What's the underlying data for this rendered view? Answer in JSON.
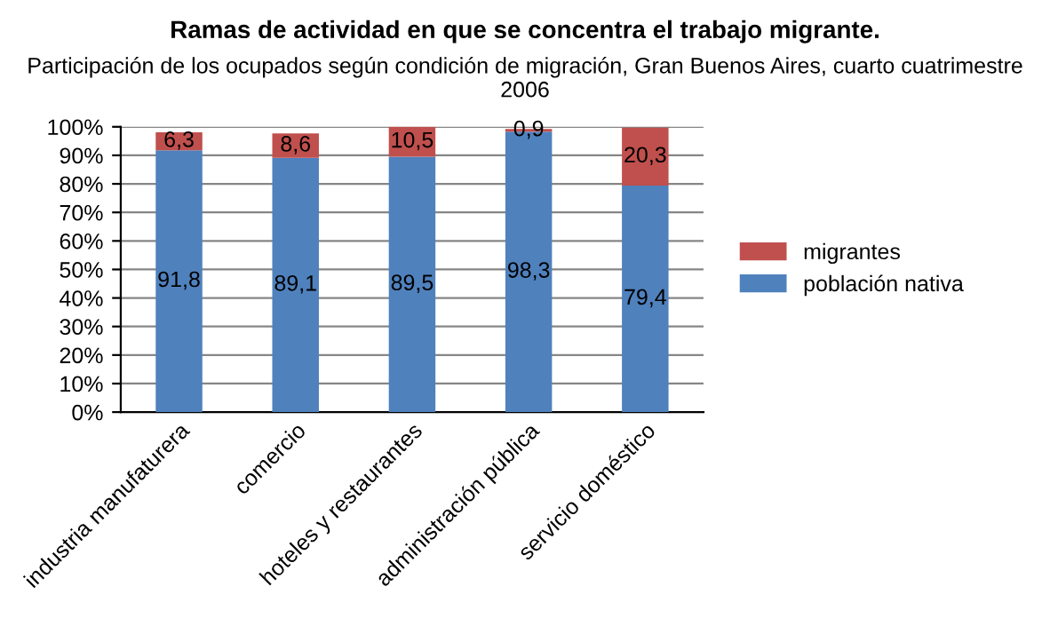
{
  "chart_data": {
    "type": "bar",
    "stacked": true,
    "title": "Ramas de actividad en que se concentra el trabajo migrante.",
    "subtitle": "Participación de los ocupados según condición de migración, Gran Buenos Aires, cuarto cuatrimestre 2006",
    "categories": [
      "industria manufaturera",
      "comercio",
      "hoteles y restaurantes",
      "administración pública",
      "servicio doméstico"
    ],
    "series": [
      {
        "name": "población nativa",
        "color": "#4f81bd",
        "values": [
          91.8,
          89.1,
          89.5,
          98.3,
          79.4
        ],
        "value_labels": [
          "91,8",
          "89,1",
          "89,5",
          "98,3",
          "79,4"
        ]
      },
      {
        "name": "migrantes",
        "color": "#c0504d",
        "values": [
          6.3,
          8.6,
          10.5,
          0.9,
          20.3
        ],
        "value_labels": [
          "6,3",
          "8,6",
          "10,5",
          "0,9",
          "20,3"
        ]
      }
    ],
    "ylim": [
      0,
      100
    ],
    "yticks": [
      {
        "value": 0,
        "label": "0%"
      },
      {
        "value": 10,
        "label": "10%"
      },
      {
        "value": 20,
        "label": "20%"
      },
      {
        "value": 30,
        "label": "30%"
      },
      {
        "value": 40,
        "label": "40%"
      },
      {
        "value": 50,
        "label": "50%"
      },
      {
        "value": 60,
        "label": "60%"
      },
      {
        "value": 70,
        "label": "70%"
      },
      {
        "value": 80,
        "label": "80%"
      },
      {
        "value": 90,
        "label": "90%"
      },
      {
        "value": 100,
        "label": "100%"
      }
    ],
    "grid": "y",
    "legend": "right"
  }
}
